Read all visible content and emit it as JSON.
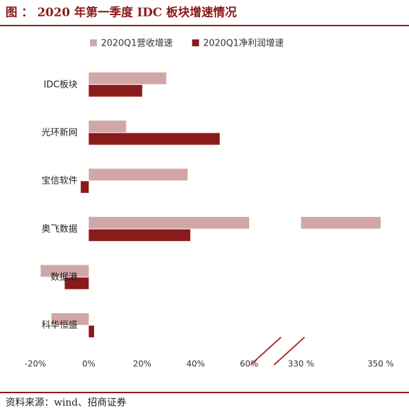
{
  "chart_data": {
    "type": "bar",
    "title": "图 ： 2020 年第一季度 IDC 板块增速情况",
    "source": "资料来源：wind、招商证券",
    "categories": [
      "IDC板块",
      "光环新网",
      "宝信软件",
      "奥飞数据",
      "数据港",
      "科华恒盛"
    ],
    "series": [
      {
        "name": "2020Q1营收增速",
        "color": "#d3a6a6",
        "values": [
          29,
          14,
          37,
          350,
          -18,
          -14
        ]
      },
      {
        "name": "2020Q1净利润增速",
        "color": "#8b1a1a",
        "values": [
          20,
          49,
          -3,
          38,
          -9,
          2
        ]
      }
    ],
    "xlim": [
      -20,
      60
    ],
    "xticks": [
      {
        "value": -20,
        "label": "-20%"
      },
      {
        "value": 0,
        "label": "0%"
      },
      {
        "value": 20,
        "label": "20%"
      },
      {
        "value": 40,
        "label": "40%"
      },
      {
        "value": 60,
        "label": "60%"
      }
    ],
    "x2lim": [
      330,
      350
    ],
    "x2ticks": [
      {
        "value": 330,
        "label": "330 %"
      },
      {
        "value": 350,
        "label": "350 %"
      }
    ],
    "legend": "top"
  }
}
